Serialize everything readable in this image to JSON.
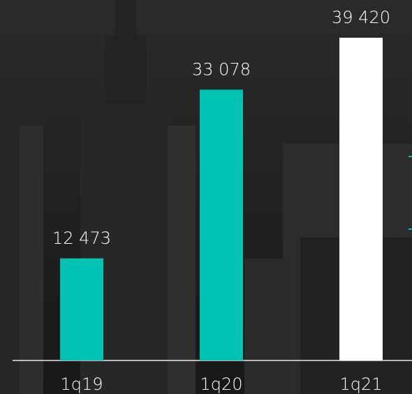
{
  "chart_data": {
    "type": "bar",
    "categories": [
      "1q19",
      "1q20",
      "1q21"
    ],
    "values": [
      12473,
      33078,
      39420
    ],
    "value_labels": [
      "12 473",
      "33 078",
      "39 420"
    ],
    "colors": [
      "#00c2b2",
      "#00c2b2",
      "#ffffff"
    ]
  }
}
